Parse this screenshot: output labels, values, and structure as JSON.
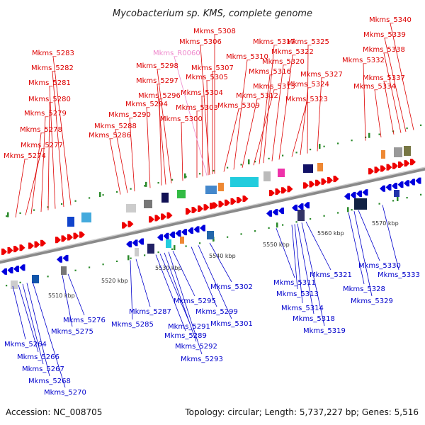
{
  "title": "Mycobacterium sp. KMS, complete genome",
  "accession": "Accession: NC_008705",
  "summary": "Topology: circular; Length: 5,737,227 bp; Genes: 5,516",
  "colors": {
    "upper_label": "#dd0000",
    "lower_label": "#0000cc",
    "rna_label": "#ee88cc",
    "backbone": "#888888",
    "tick": "#2a8a2a"
  },
  "scale_labels": [
    "5510 kbp",
    "5520 kbp",
    "5530 kbp",
    "5540 kbp",
    "5550 kbp",
    "5560 kbp",
    "5570 kbp"
  ],
  "upper_labels": [
    "Mkms_5274",
    "Mkms_5277",
    "Mkms_5278",
    "Mkms_5279",
    "Mkms_5280",
    "Mkms_5281",
    "Mkms_5282",
    "Mkms_5283",
    "Mkms_5286",
    "Mkms_5288",
    "Mkms_5290",
    "Mkms_5294",
    "Mkms_5296",
    "Mkms_5297",
    "Mkms_5298",
    "Mkms_5300",
    "Mkms_5303",
    "Mkms_5304",
    "Mkms_5305",
    "Mkms_5307",
    "Mkms_5306",
    "Mkms_5308",
    "Mkms_5309",
    "Mkms_5310",
    "Mkms_5312",
    "Mkms_5315",
    "Mkms_5316",
    "Mkms_5317",
    "Mkms_5320",
    "Mkms_5322",
    "Mkms_5323",
    "Mkms_5324",
    "Mkms_5325",
    "Mkms_5327",
    "Mkms_5332",
    "Mkms_5334",
    "Mkms_5337",
    "Mkms_5338",
    "Mkms_5339",
    "Mkms_5340"
  ],
  "rna_labels": [
    "Mkms_R0060"
  ],
  "lower_labels": [
    "Mkms_5264",
    "Mkms_5266",
    "Mkms_5267",
    "Mkms_5268",
    "Mkms_5270",
    "Mkms_5275",
    "Mkms_5276",
    "Mkms_5285",
    "Mkms_5287",
    "Mkms_5289",
    "Mkms_5291",
    "Mkms_5292",
    "Mkms_5293",
    "Mkms_5295",
    "Mkms_5299",
    "Mkms_5301",
    "Mkms_5302",
    "Mkms_5311",
    "Mkms_5313",
    "Mkms_5314",
    "Mkms_5318",
    "Mkms_5319",
    "Mkms_5321",
    "Mkms_5328",
    "Mkms_5329",
    "Mkms_5330",
    "Mkms_5333"
  ]
}
